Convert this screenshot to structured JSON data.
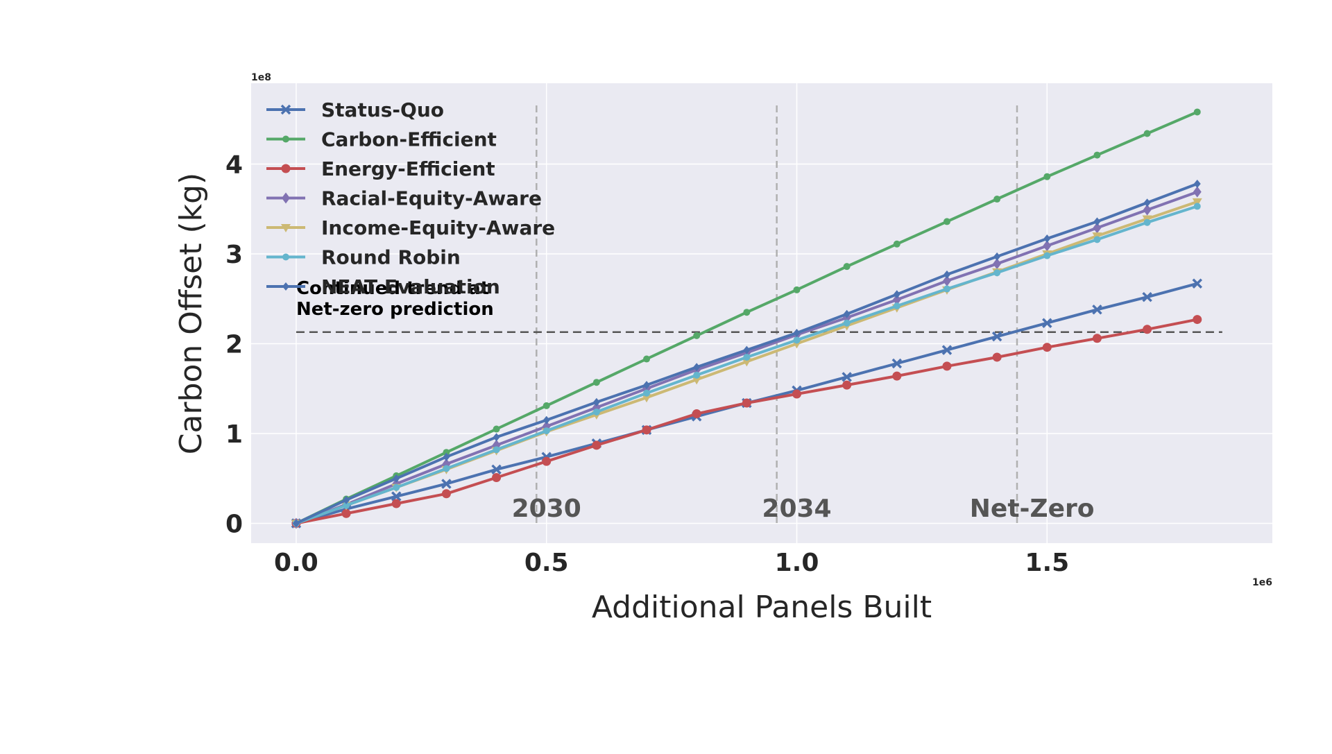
{
  "chart_data": {
    "type": "line",
    "title": "",
    "xlabel": "Additional Panels Built",
    "ylabel": "Carbon Offset (kg)",
    "x_exponent_label": "1e6",
    "y_exponent_label": "1e8",
    "x_scale": 1000000,
    "y_scale": 100000000,
    "xlim": [
      -0.09,
      1.95
    ],
    "ylim": [
      -0.22,
      4.9
    ],
    "x_ticks": [
      0.0,
      0.5,
      1.0,
      1.5
    ],
    "x_tick_labels": [
      "0.0",
      "0.5",
      "1.0",
      "1.5"
    ],
    "y_ticks": [
      0,
      1,
      2,
      3,
      4
    ],
    "y_tick_labels": [
      "0",
      "1",
      "2",
      "3",
      "4"
    ],
    "grid": true,
    "legend_position": "upper-left",
    "x": [
      0,
      0.1,
      0.2,
      0.3,
      0.4,
      0.5,
      0.6,
      0.7,
      0.8,
      0.9,
      1.0,
      1.1,
      1.2,
      1.3,
      1.4,
      1.5,
      1.6,
      1.7,
      1.8
    ],
    "series": [
      {
        "name": "Status-Quo",
        "color": "#4c72b0",
        "marker": "x",
        "values": [
          0,
          0.16,
          0.3,
          0.44,
          0.6,
          0.74,
          0.89,
          1.04,
          1.19,
          1.34,
          1.48,
          1.63,
          1.78,
          1.93,
          2.08,
          2.23,
          2.38,
          2.52,
          2.67
        ]
      },
      {
        "name": "Carbon-Efficient",
        "color": "#55a868",
        "marker": "circle-small",
        "values": [
          0,
          0.27,
          0.53,
          0.79,
          1.05,
          1.31,
          1.57,
          1.83,
          2.09,
          2.35,
          2.6,
          2.86,
          3.11,
          3.36,
          3.61,
          3.86,
          4.1,
          4.34,
          4.58
        ]
      },
      {
        "name": "Energy-Efficient",
        "color": "#c44e52",
        "marker": "circle",
        "values": [
          0,
          0.11,
          0.22,
          0.33,
          0.51,
          0.69,
          0.87,
          1.04,
          1.22,
          1.34,
          1.44,
          1.54,
          1.64,
          1.75,
          1.85,
          1.96,
          2.06,
          2.16,
          2.27
        ]
      },
      {
        "name": "Racial-Equity-Aware",
        "color": "#8172b2",
        "marker": "diamond",
        "values": [
          0,
          0.21,
          0.44,
          0.66,
          0.87,
          1.08,
          1.29,
          1.5,
          1.71,
          1.9,
          2.1,
          2.29,
          2.49,
          2.7,
          2.89,
          3.09,
          3.29,
          3.49,
          3.69
        ]
      },
      {
        "name": "Income-Equity-Aware",
        "color": "#ccb974",
        "marker": "triangle-down",
        "values": [
          0,
          0.2,
          0.4,
          0.6,
          0.81,
          1.02,
          1.21,
          1.4,
          1.6,
          1.8,
          2.0,
          2.2,
          2.4,
          2.6,
          2.8,
          3.0,
          3.2,
          3.39,
          3.58
        ]
      },
      {
        "name": "Round Robin",
        "color": "#64b5cd",
        "marker": "circle-small",
        "values": [
          0,
          0.2,
          0.4,
          0.61,
          0.82,
          1.03,
          1.24,
          1.45,
          1.65,
          1.85,
          2.04,
          2.23,
          2.42,
          2.61,
          2.79,
          2.98,
          3.16,
          3.35,
          3.53
        ]
      },
      {
        "name": "NEAT Evaluation",
        "color": "#4c72b0",
        "marker": "diamond-small",
        "values": [
          0,
          0.26,
          0.5,
          0.74,
          0.96,
          1.15,
          1.35,
          1.54,
          1.74,
          1.93,
          2.12,
          2.33,
          2.55,
          2.77,
          2.97,
          3.17,
          3.36,
          3.57,
          3.78
        ]
      }
    ],
    "reference_line": {
      "y": 2.13,
      "x_range": [
        0,
        1.85
      ],
      "color": "#555555"
    },
    "reference_line_label": [
      "Continued trend at",
      "Net-zero prediction"
    ],
    "period_markers": [
      {
        "x": 0.48,
        "label": "2030",
        "label_x": 0.5
      },
      {
        "x": 0.96,
        "label": "2034",
        "label_x": 1.0
      },
      {
        "x": 1.44,
        "label": "Net-Zero",
        "label_x": 1.47
      }
    ],
    "colors": {
      "plot_background": "#eaeaf2",
      "grid": "#ffffff"
    }
  }
}
